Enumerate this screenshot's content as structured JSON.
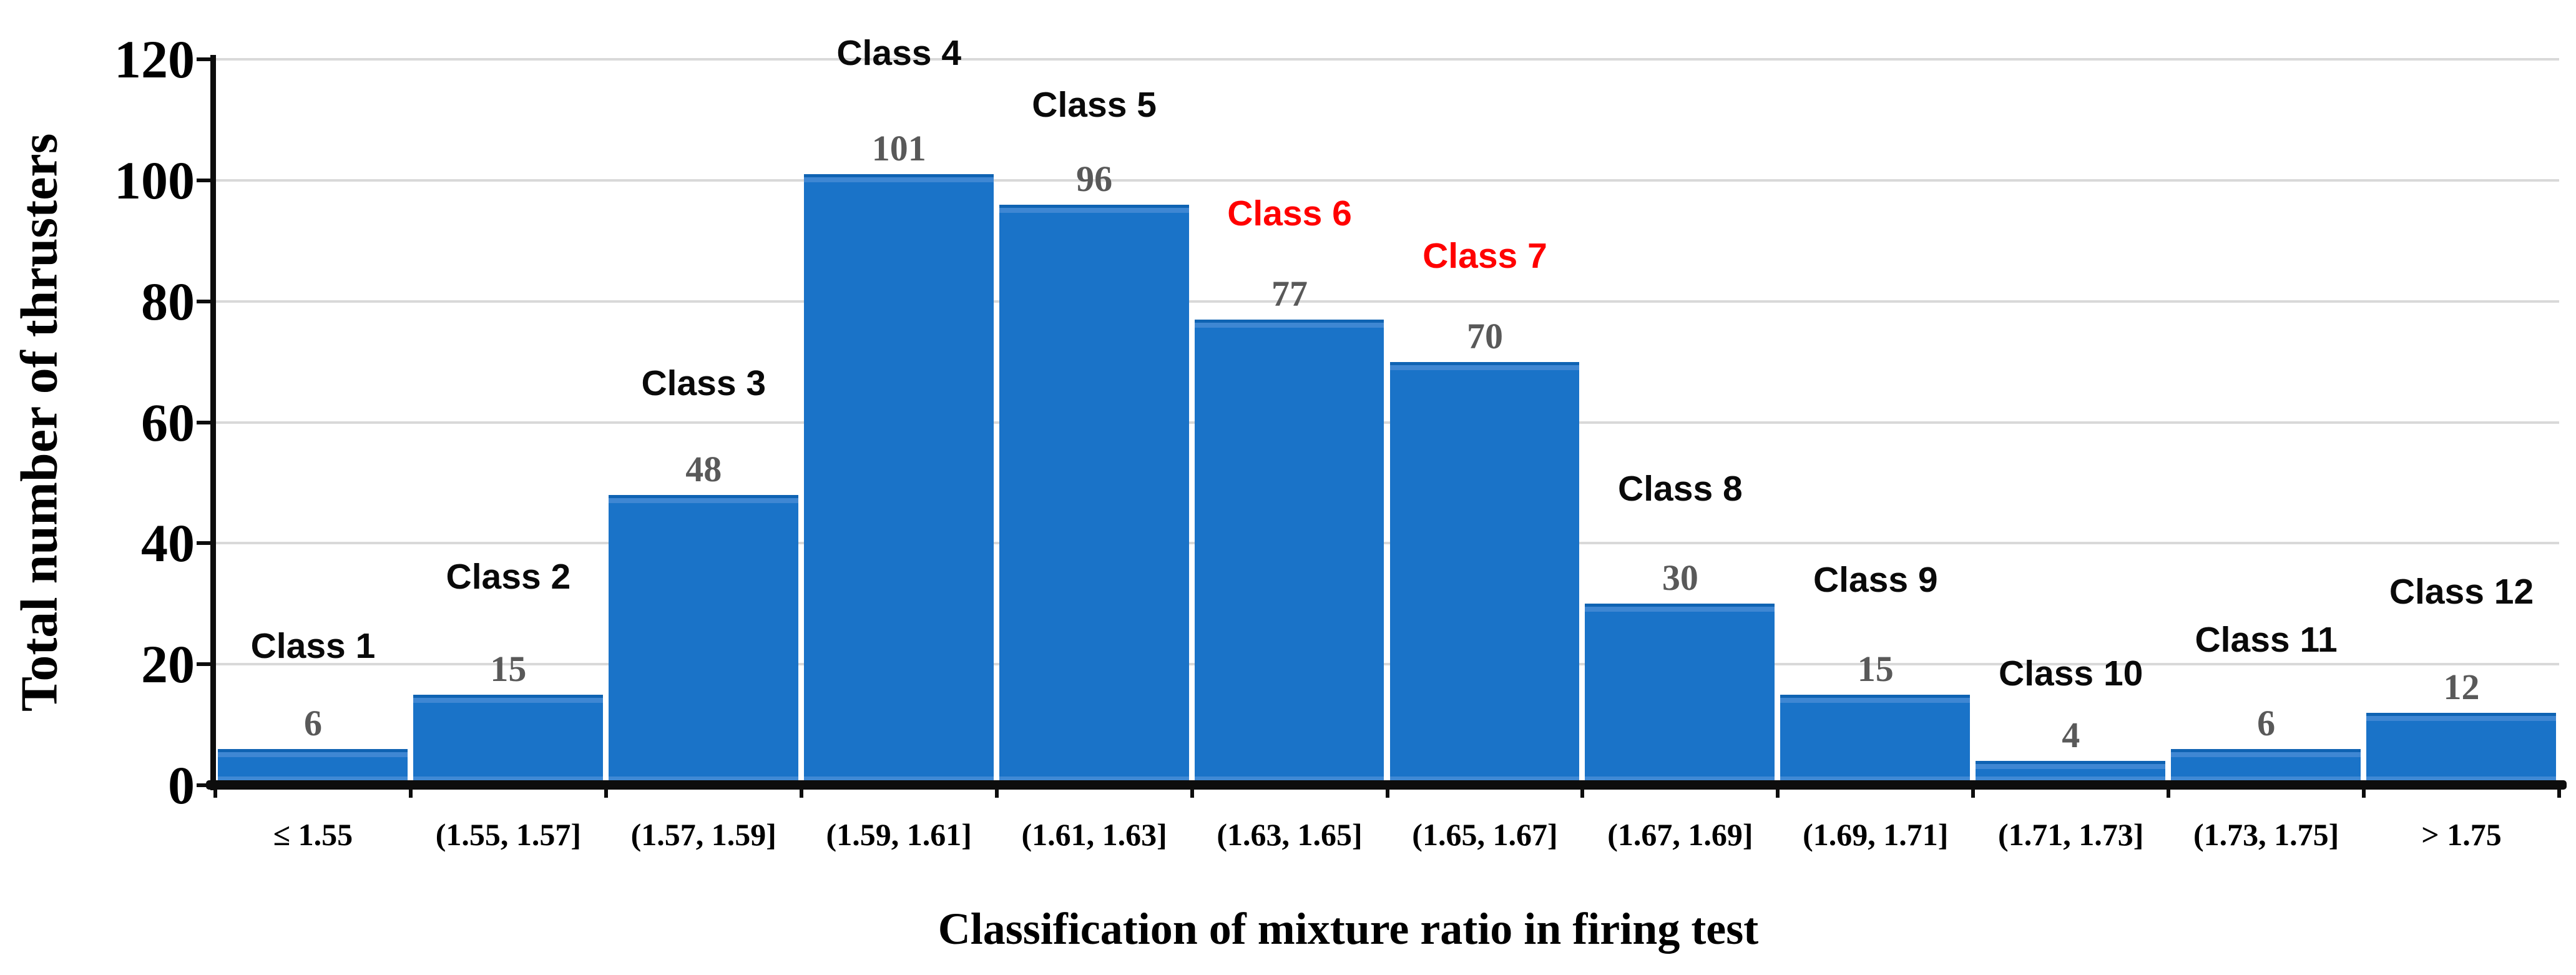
{
  "chart_data": {
    "type": "bar",
    "title": "",
    "xlabel": "Classification of mixture ratio in firing test",
    "ylabel": "Total number of thrusters",
    "ylim": [
      0,
      120
    ],
    "yticks": [
      0,
      20,
      40,
      60,
      80,
      100,
      120
    ],
    "grid": true,
    "legend": false,
    "categories": [
      "≤ 1.55",
      "(1.55, 1.57]",
      "(1.57, 1.59]",
      "(1.59, 1.61]",
      "(1.61, 1.63]",
      "(1.63, 1.65]",
      "(1.65, 1.67]",
      "(1.67, 1.69]",
      "(1.69, 1.71]",
      "(1.71, 1.73]",
      "(1.73, 1.75]",
      "> 1.75"
    ],
    "values": [
      6,
      15,
      48,
      101,
      96,
      77,
      70,
      30,
      15,
      4,
      6,
      12
    ],
    "bars": [
      {
        "class_label": "Class 1",
        "value": 6,
        "category": "≤ 1.55",
        "highlight": false,
        "class_label_level": 20
      },
      {
        "class_label": "Class 2",
        "value": 15,
        "category": "(1.55, 1.57]",
        "highlight": false,
        "class_label_level": 31.5
      },
      {
        "class_label": "Class 3",
        "value": 48,
        "category": "(1.57, 1.59]",
        "highlight": false,
        "class_label_level": 63.5
      },
      {
        "class_label": "Class 4",
        "value": 101,
        "category": "(1.59, 1.61]",
        "highlight": false,
        "class_label_level": 118
      },
      {
        "class_label": "Class 5",
        "value": 96,
        "category": "(1.61, 1.63]",
        "highlight": false,
        "class_label_level": 109.5
      },
      {
        "class_label": "Class 6",
        "value": 77,
        "category": "(1.63, 1.65]",
        "highlight": true,
        "class_label_level": 91.5
      },
      {
        "class_label": "Class 7",
        "value": 70,
        "category": "(1.65, 1.67]",
        "highlight": true,
        "class_label_level": 84.5
      },
      {
        "class_label": "Class 8",
        "value": 30,
        "category": "(1.67, 1.69]",
        "highlight": false,
        "class_label_level": 46
      },
      {
        "class_label": "Class 9",
        "value": 15,
        "category": "(1.69, 1.71]",
        "highlight": false,
        "class_label_level": 31
      },
      {
        "class_label": "Class 10",
        "value": 4,
        "category": "(1.71, 1.73]",
        "highlight": false,
        "class_label_level": 15.5
      },
      {
        "class_label": "Class 11",
        "value": 6,
        "category": "(1.73, 1.75]",
        "highlight": false,
        "class_label_level": 21
      },
      {
        "class_label": "Class 12",
        "value": 12,
        "category": "> 1.75",
        "highlight": false,
        "class_label_level": 29
      }
    ],
    "highlighted_class_labels": [
      "Class 6",
      "Class 7"
    ],
    "colors": {
      "bar_fill": "#1A73C8",
      "bar_top_edge": "#0F63B3",
      "value_label": "#595959",
      "class_label": "#0A0A0A",
      "class_label_highlight": "#FF0000",
      "gridline": "#D9D9D9",
      "axis_line": "#0D0D0D",
      "background": "#FFFFFF"
    }
  }
}
